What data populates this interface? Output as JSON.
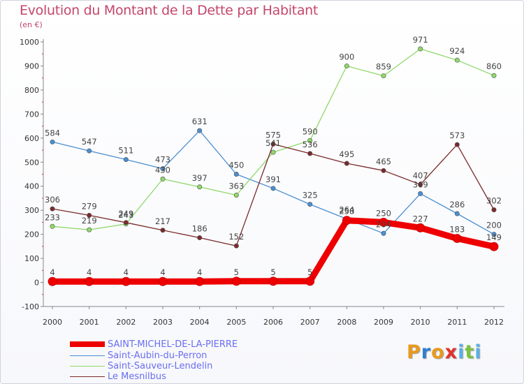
{
  "header": {
    "title": "Evolution du Montant de la Dette par Habitant",
    "subtitle": "(en €)"
  },
  "logo": {
    "text": "Proxiti",
    "letters": [
      "P",
      "r",
      "o",
      "x",
      "i",
      "t",
      "i"
    ],
    "colors": [
      "#e89a1e",
      "#2f7fd0",
      "#e89a1e",
      "#e2322b",
      "#5ab0e6",
      "#7cc242",
      "#5ab0e6"
    ]
  },
  "chart_data": {
    "type": "line",
    "x": [
      "2000",
      "2001",
      "2002",
      "2003",
      "2004",
      "2005",
      "2006",
      "2007",
      "2008",
      "2009",
      "2010",
      "2011",
      "2012"
    ],
    "ylim": [
      -100,
      1000
    ],
    "yticks": [
      "-100",
      "0",
      "100",
      "200",
      "300",
      "400",
      "500",
      "600",
      "700",
      "800",
      "900",
      "1000"
    ],
    "grid": false,
    "legend_position": "bottom-left",
    "series": [
      {
        "name": "SAINT-MICHEL-DE-LA-PIERRE",
        "color": "#ee0000",
        "values": [
          4,
          4,
          4,
          4,
          4,
          5,
          5,
          5,
          258,
          250,
          227,
          183,
          149
        ],
        "labels": [
          "4",
          "4",
          "4",
          "4",
          "4",
          "5",
          "5",
          "5",
          "258",
          "250",
          "227",
          "183",
          "149"
        ]
      },
      {
        "name": "Saint-Aubin-du-Perron",
        "color": "#4a8fd0",
        "values": [
          584,
          547,
          511,
          473,
          631,
          450,
          391,
          325,
          264,
          204,
          369,
          286,
          200
        ],
        "labels": [
          "584",
          "547",
          "511",
          "473",
          "631",
          "450",
          "391",
          "325",
          "264",
          "204",
          "369",
          "286",
          "200"
        ]
      },
      {
        "name": "Saint-Sauveur-Lendelin",
        "color": "#8fd86a",
        "values": [
          233,
          219,
          243,
          430,
          397,
          363,
          541,
          590,
          900,
          859,
          971,
          924,
          860
        ],
        "labels": [
          "233",
          "219",
          "243",
          "430",
          "397",
          "363",
          "541",
          "590",
          "900",
          "859",
          "971",
          "924",
          "860"
        ]
      },
      {
        "name": "Le Mesnilbus",
        "color": "#7a2a2a",
        "values": [
          306,
          279,
          249,
          217,
          186,
          152,
          575,
          536,
          495,
          465,
          407,
          573,
          302
        ],
        "labels": [
          "306",
          "279",
          "249",
          "217",
          "186",
          "152",
          "575",
          "536",
          "495",
          "465",
          "407",
          "573",
          "302"
        ]
      }
    ]
  }
}
